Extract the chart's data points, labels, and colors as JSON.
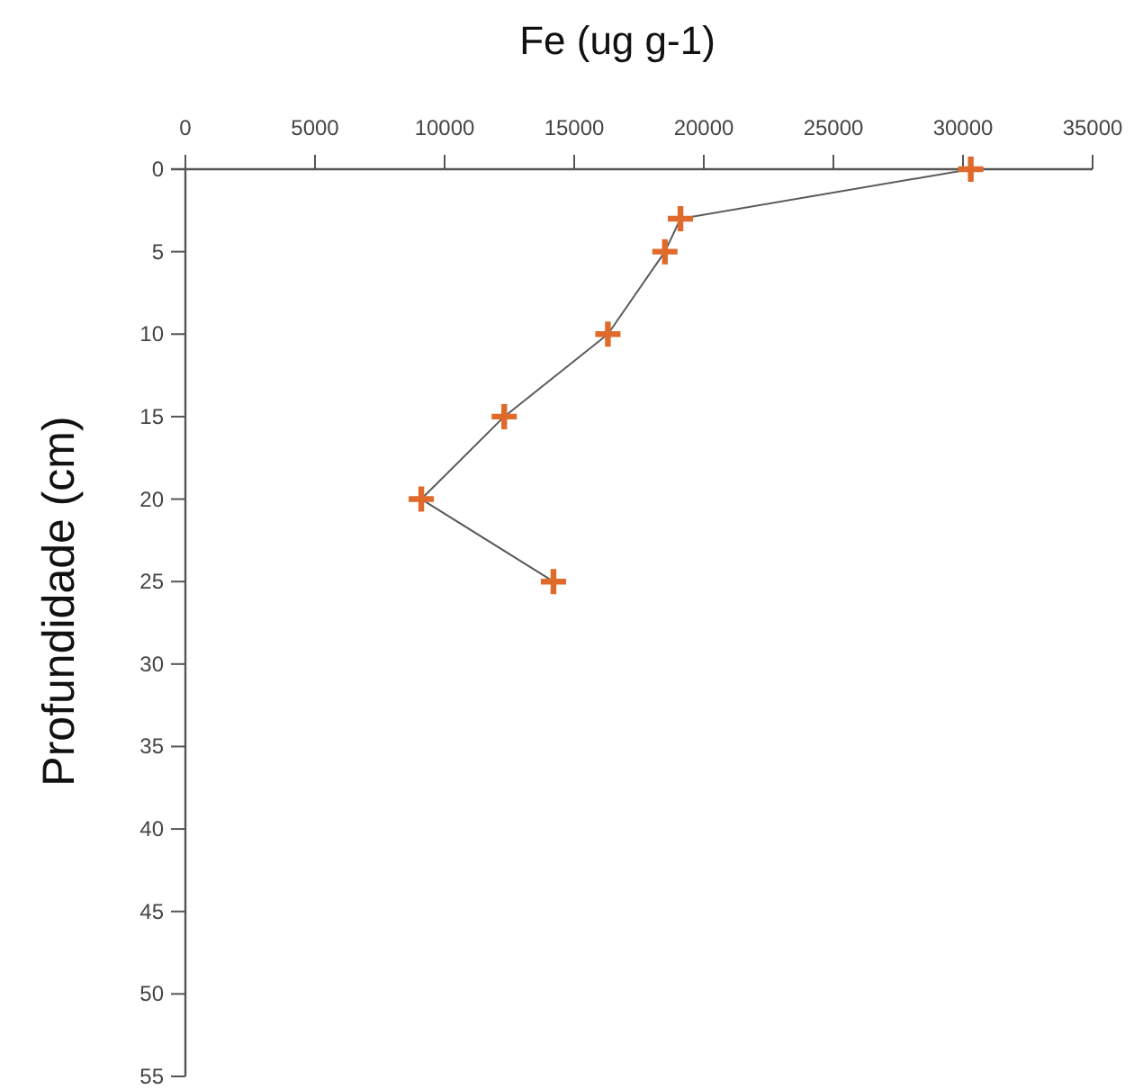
{
  "chart_data": {
    "type": "line",
    "xlabel": "Fe (ug g-1)",
    "ylabel": "Profundidade (cm)",
    "x": [
      30300,
      19100,
      18500,
      16300,
      12300,
      9100,
      14200
    ],
    "series": [
      {
        "color": "#e06a2c",
        "values": [
          0,
          3,
          5,
          10,
          15,
          20,
          25
        ]
      }
    ],
    "xlim": [
      0,
      35000
    ],
    "xticks": [
      0,
      5000,
      10000,
      15000,
      20000,
      25000,
      30000,
      35000
    ],
    "ylim": [
      55,
      0
    ],
    "yticks": [
      0,
      5,
      10,
      15,
      20,
      25,
      30,
      35,
      40,
      45,
      50,
      55
    ],
    "marker": "cross"
  }
}
